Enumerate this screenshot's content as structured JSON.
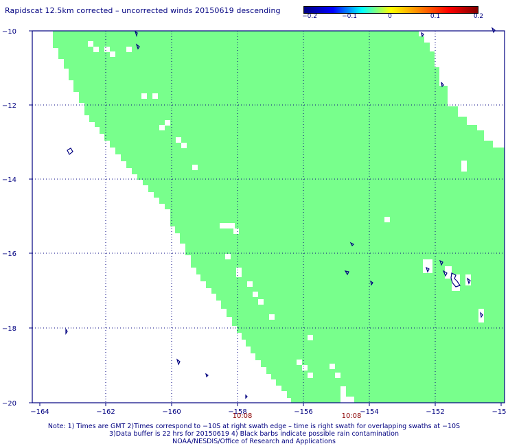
{
  "title": "Rapidscat 12.5km corrected – uncorrected winds 20150619 descending",
  "colorbar": {
    "colors": [
      "#000080",
      "#0000ff",
      "#00ffff",
      "#ffff00",
      "#ff8000",
      "#ff0000",
      "#800000"
    ],
    "ticks": [
      "−0.2",
      "−0.1",
      "0",
      "0.1",
      "0.2"
    ]
  },
  "map": {
    "lon_range": [
      -164.5,
      -150
    ],
    "lat_range": [
      -20,
      -10
    ],
    "lon_ticks": [
      "−164",
      "−162",
      "−160",
      "−158",
      "−156",
      "−154",
      "−152",
      "−15"
    ],
    "lat_ticks": [
      "−10",
      "−12",
      "−14",
      "−16",
      "−18",
      "−20"
    ],
    "swath_color": "#78ff8c",
    "time_labels": [
      "10:08",
      "10:08"
    ],
    "time_color": "#8b0000"
  },
  "notes": [
    "Note: 1) Times are GMT 2)Times correspond to −10S at right swath edge – time is right swath for overlapping swaths at −10S",
    "3)Data buffer is 22 hrs for 20150619 4) Black barbs indicate possible rain contamination",
    "NOAA/NESDIS/Office of Research and Applications"
  ]
}
